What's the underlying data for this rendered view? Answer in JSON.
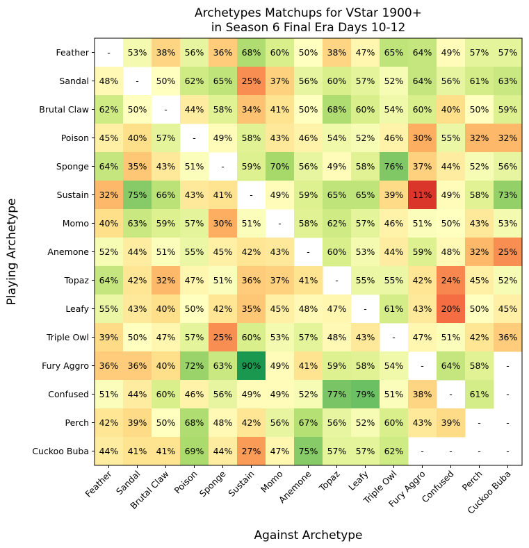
{
  "chart_data": {
    "type": "heatmap",
    "title": [
      "Archetypes Matchups for VStar 1900+",
      "in Season 6 Final Era Days 10-12"
    ],
    "xlabel": "Against Archetype",
    "ylabel": "Playing Archetype",
    "x_categories": [
      "Feather",
      "Sandal",
      "Brutal Claw",
      "Poison",
      "Sponge",
      "Sustain",
      "Momo",
      "Anemone",
      "Topaz",
      "Leafy",
      "Triple Owl",
      "Fury Aggro",
      "Confused",
      "Perch",
      "Cuckoo Buba"
    ],
    "y_categories": [
      "Feather",
      "Sandal",
      "Brutal Claw",
      "Poison",
      "Sponge",
      "Sustain",
      "Momo",
      "Anemone",
      "Topaz",
      "Leafy",
      "Triple Owl",
      "Fury Aggro",
      "Confused",
      "Perch",
      "Cuckoo Buba"
    ],
    "values": [
      [
        null,
        53,
        38,
        56,
        36,
        68,
        60,
        50,
        38,
        47,
        65,
        64,
        49,
        57,
        57
      ],
      [
        48,
        null,
        50,
        62,
        65,
        25,
        37,
        56,
        60,
        57,
        52,
        64,
        56,
        61,
        63
      ],
      [
        62,
        50,
        null,
        44,
        58,
        34,
        41,
        50,
        68,
        60,
        54,
        60,
        40,
        50,
        59
      ],
      [
        45,
        40,
        57,
        null,
        49,
        58,
        43,
        46,
        54,
        52,
        46,
        30,
        55,
        32,
        32
      ],
      [
        64,
        35,
        43,
        51,
        null,
        59,
        70,
        56,
        49,
        58,
        76,
        37,
        44,
        52,
        56
      ],
      [
        32,
        75,
        66,
        43,
        41,
        null,
        49,
        59,
        65,
        65,
        39,
        11,
        49,
        58,
        73
      ],
      [
        40,
        63,
        59,
        57,
        30,
        51,
        null,
        58,
        62,
        57,
        46,
        51,
        50,
        43,
        53
      ],
      [
        52,
        44,
        51,
        55,
        45,
        42,
        43,
        null,
        60,
        53,
        44,
        59,
        48,
        32,
        25
      ],
      [
        64,
        42,
        32,
        47,
        51,
        36,
        37,
        41,
        null,
        55,
        55,
        42,
        24,
        45,
        52
      ],
      [
        55,
        43,
        40,
        50,
        42,
        35,
        45,
        48,
        47,
        null,
        61,
        43,
        20,
        50,
        45
      ],
      [
        39,
        50,
        47,
        57,
        25,
        60,
        53,
        57,
        48,
        43,
        null,
        47,
        51,
        42,
        36
      ],
      [
        36,
        36,
        40,
        72,
        63,
        90,
        49,
        41,
        59,
        58,
        54,
        null,
        64,
        58,
        null
      ],
      [
        51,
        44,
        60,
        46,
        56,
        49,
        49,
        52,
        77,
        79,
        51,
        38,
        null,
        61,
        null
      ],
      [
        42,
        39,
        50,
        68,
        48,
        42,
        56,
        67,
        56,
        52,
        60,
        43,
        39,
        null,
        null
      ],
      [
        44,
        41,
        41,
        69,
        44,
        27,
        47,
        75,
        57,
        57,
        62,
        null,
        null,
        null,
        null
      ]
    ],
    "value_format": "percent",
    "missing_label": "-",
    "colormap": "RdYlGn",
    "vmin": 0,
    "vmax": 100
  }
}
